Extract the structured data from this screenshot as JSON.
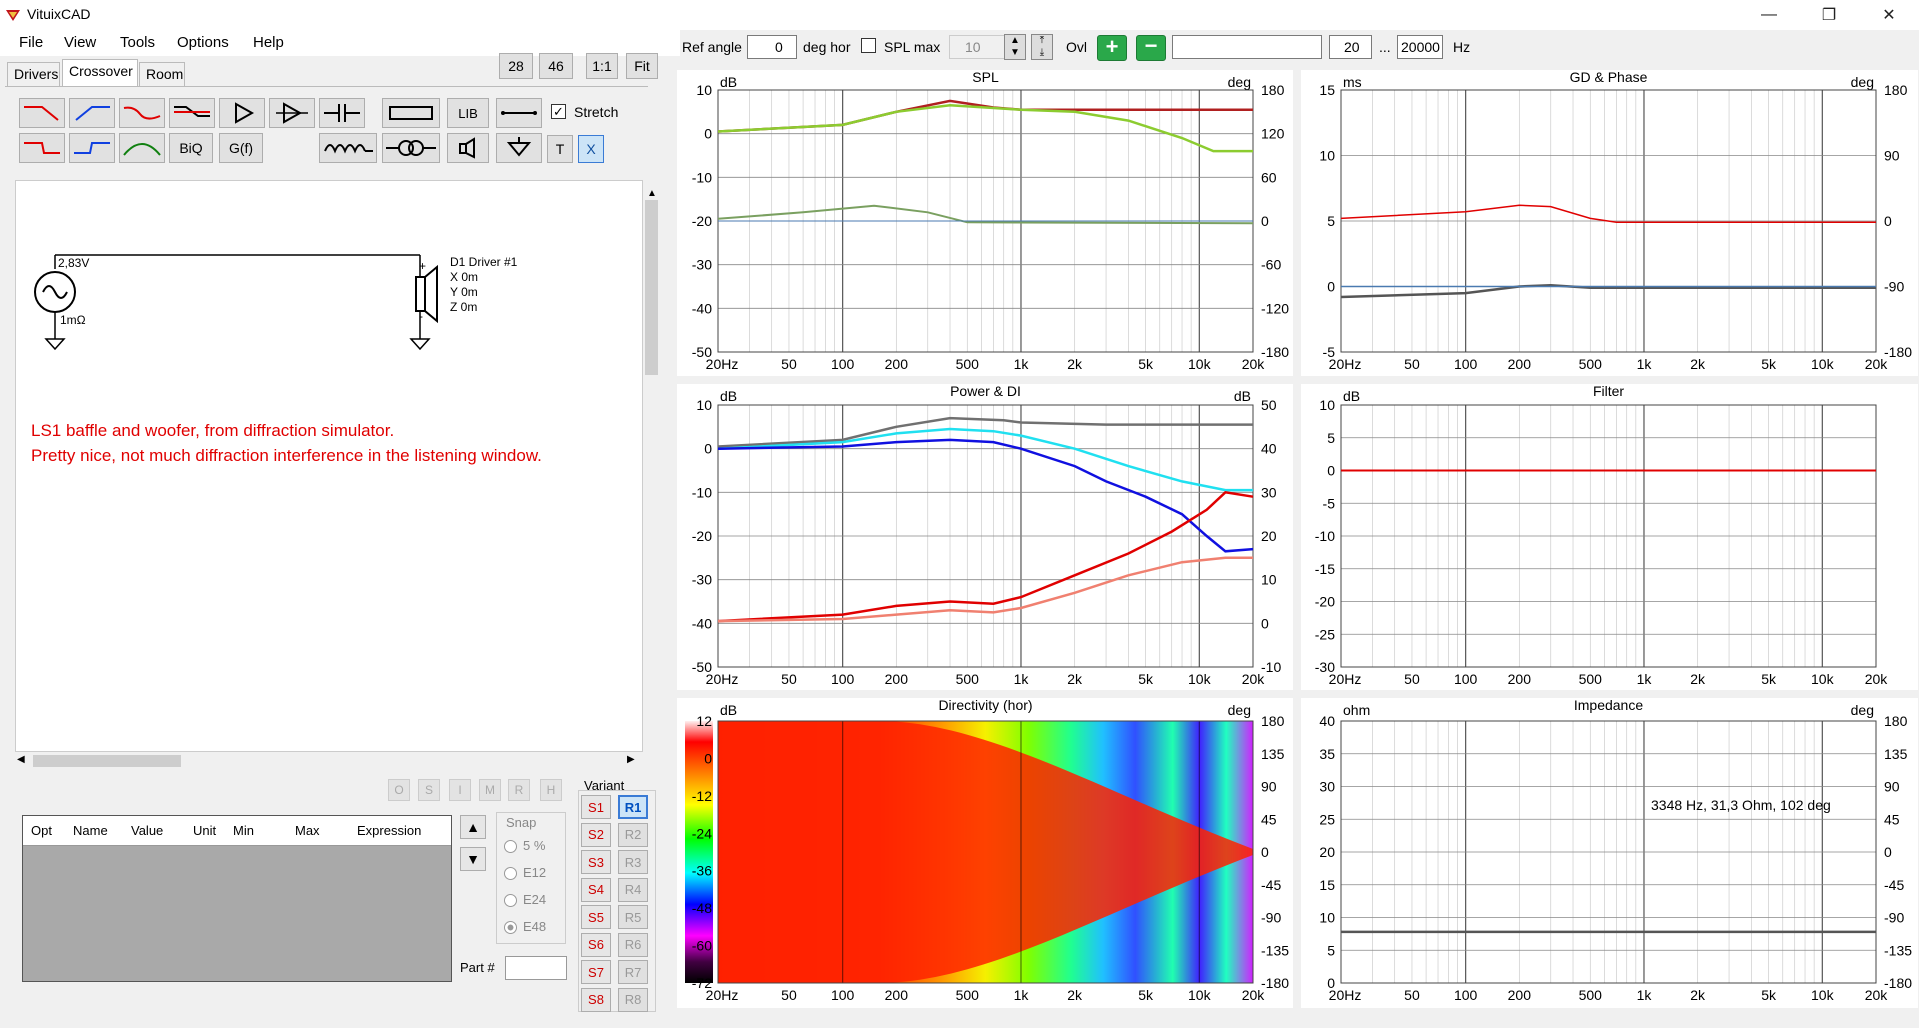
{
  "app": {
    "title": "VituixCAD"
  },
  "menu": [
    "File",
    "View",
    "Tools",
    "Options",
    "Help"
  ],
  "tabs": [
    "Drivers",
    "Crossover",
    "Room"
  ],
  "zoom": [
    "28",
    "46",
    "1:1",
    "Fit"
  ],
  "toolbar": {
    "lib_label": "LIB",
    "biq_label": "BiQ",
    "gf_label": "G(f)",
    "t_label": "T",
    "x_label": "X",
    "stretch_label": "Stretch"
  },
  "schematic": {
    "source_voltage": "2,83V",
    "source_impedance": "1mΩ",
    "driver_label": "D1 Driver #1",
    "driver_x": "X 0m",
    "driver_y": "Y 0m",
    "driver_z": "Z 0m",
    "plus": "+",
    "minus": "-"
  },
  "notes": [
    "LS1 baffle and woofer, from diffraction simulator.",
    "Pretty nice, not much diffraction interference in the listening window."
  ],
  "table": {
    "headers": [
      "Opt",
      "Name",
      "Value",
      "Unit",
      "Min",
      "Max",
      "Expression"
    ]
  },
  "opt_buttons": [
    "O",
    "S",
    "I",
    "M",
    "R",
    "H"
  ],
  "snap": {
    "label": "Snap",
    "options": [
      "5 %",
      "E12",
      "E24",
      "E48"
    ]
  },
  "variant": {
    "label": "Variant",
    "s": [
      "S1",
      "S2",
      "S3",
      "S4",
      "S5",
      "S6",
      "S7",
      "S8"
    ],
    "r": [
      "R1",
      "R2",
      "R3",
      "R4",
      "R5",
      "R6",
      "R7",
      "R8"
    ]
  },
  "part": {
    "label": "Part #"
  },
  "topbar": {
    "ref_angle_label": "Ref angle",
    "ref_angle_value": "0",
    "deg_hor": "deg hor",
    "splmax_label": "SPL max",
    "splmax_value": "10",
    "ovl": "Ovl",
    "freq_min": "20",
    "ellipsis": "...",
    "freq_max": "20000",
    "hz": "Hz"
  },
  "xticks": [
    "20Hz",
    "50",
    "100",
    "200",
    "500",
    "1k",
    "2k",
    "5k",
    "10k",
    "20k"
  ],
  "charts": [
    {
      "title": "SPL",
      "lunit": "dB",
      "runit": "deg",
      "left": [
        "10",
        "0",
        "-10",
        "-20",
        "-30",
        "-40",
        "-50"
      ],
      "right": [
        "180",
        "120",
        "60",
        "0",
        "-60",
        "-120",
        "-180"
      ]
    },
    {
      "title": "GD & Phase",
      "lunit": "ms",
      "runit": "deg",
      "left": [
        "15",
        "10",
        "5",
        "0",
        "-5"
      ],
      "right": [
        "180",
        "90",
        "0",
        "-90",
        "-180"
      ]
    },
    {
      "title": "Power & DI",
      "lunit": "dB",
      "runit": "dB",
      "left": [
        "10",
        "0",
        "-10",
        "-20",
        "-30",
        "-40",
        "-50"
      ],
      "right": [
        "50",
        "40",
        "30",
        "20",
        "10",
        "0",
        "-10"
      ]
    },
    {
      "title": "Filter",
      "lunit": "dB",
      "runit": "",
      "left": [
        "10",
        "5",
        "0",
        "-5",
        "-10",
        "-15",
        "-20",
        "-25",
        "-30"
      ],
      "right": []
    },
    {
      "title": "Directivity (hor)",
      "lunit": "dB",
      "runit": "deg",
      "left": [
        "12",
        "0",
        "-12",
        "-24",
        "-36",
        "-48",
        "-60",
        "-72"
      ],
      "right": [
        "180",
        "135",
        "90",
        "45",
        "0",
        "-45",
        "-90",
        "-135",
        "-180"
      ]
    },
    {
      "title": "Impedance",
      "lunit": "ohm",
      "runit": "deg",
      "left": [
        "40",
        "35",
        "30",
        "25",
        "20",
        "15",
        "10",
        "5",
        "0"
      ],
      "right": [
        "180",
        "135",
        "90",
        "45",
        "0",
        "-45",
        "-90",
        "-135",
        "-180"
      ],
      "annotation": "3348 Hz, 31,3 Ohm, 102 deg"
    }
  ],
  "colors": {
    "red": "#e00000",
    "blue": "#1010e0",
    "cyan": "#20e0f0",
    "gray": "#707070",
    "green": "#8ccc30",
    "darkred": "#b02020",
    "salmon": "#f08070",
    "steelblue": "#4a7ab0"
  }
}
